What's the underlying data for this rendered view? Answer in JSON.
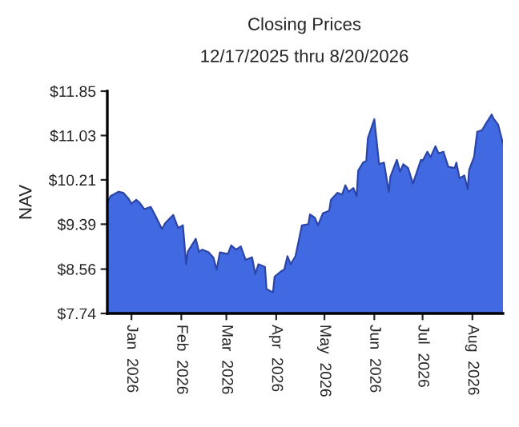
{
  "chart_data": {
    "type": "area",
    "title": "Closing Prices",
    "subtitle": "12/17/2025 thru 8/20/2026",
    "ylabel": "NAV",
    "color": "#4169e1",
    "grid": false,
    "legend": false,
    "x": [
      "2025-12-17",
      "2025-12-19",
      "2025-12-24",
      "2025-12-27",
      "2025-12-30",
      "2026-01-01",
      "2026-01-04",
      "2026-01-06",
      "2026-01-09",
      "2026-01-13",
      "2026-01-16",
      "2026-01-20",
      "2026-01-22",
      "2026-01-27",
      "2026-01-30",
      "2026-02-02",
      "2026-02-04",
      "2026-02-05",
      "2026-02-10",
      "2026-02-12",
      "2026-02-14",
      "2026-02-18",
      "2026-02-21",
      "2026-02-23",
      "2026-02-25",
      "2026-03-02",
      "2026-03-04",
      "2026-03-07",
      "2026-03-10",
      "2026-03-13",
      "2026-03-17",
      "2026-03-19",
      "2026-03-21",
      "2026-03-25",
      "2026-03-26",
      "2026-03-30",
      "2026-03-31",
      "2026-04-04",
      "2026-04-06",
      "2026-04-08",
      "2026-04-10",
      "2026-04-13",
      "2026-04-17",
      "2026-04-21",
      "2026-04-22",
      "2026-04-25",
      "2026-04-27",
      "2026-04-30",
      "2026-05-04",
      "2026-05-05",
      "2026-05-09",
      "2026-05-12",
      "2026-05-14",
      "2026-05-16",
      "2026-05-19",
      "2026-05-21",
      "2026-05-22",
      "2026-05-25",
      "2026-05-27",
      "2026-05-28",
      "2026-06-01",
      "2026-06-04",
      "2026-06-07",
      "2026-06-10",
      "2026-06-11",
      "2026-06-15",
      "2026-06-17",
      "2026-06-19",
      "2026-06-22",
      "2026-06-25",
      "2026-06-30",
      "2026-07-01",
      "2026-07-04",
      "2026-07-06",
      "2026-07-09",
      "2026-07-11",
      "2026-07-14",
      "2026-07-17",
      "2026-07-21",
      "2026-07-22",
      "2026-07-24",
      "2026-07-27",
      "2026-07-29",
      "2026-07-30",
      "2026-08-02",
      "2026-08-04",
      "2026-08-07",
      "2026-08-09",
      "2026-08-13",
      "2026-08-14",
      "2026-08-17",
      "2026-08-20"
    ],
    "values": [
      9.79,
      9.91,
      9.99,
      9.97,
      9.87,
      9.77,
      9.84,
      9.79,
      9.67,
      9.71,
      9.54,
      9.3,
      9.41,
      9.56,
      9.32,
      9.37,
      8.65,
      8.88,
      9.12,
      8.88,
      8.92,
      8.87,
      8.77,
      8.55,
      8.87,
      8.84,
      9.0,
      8.92,
      8.98,
      8.73,
      8.78,
      8.47,
      8.65,
      8.6,
      8.19,
      8.13,
      8.42,
      8.52,
      8.55,
      8.8,
      8.65,
      8.8,
      9.37,
      9.39,
      9.57,
      9.51,
      9.37,
      9.59,
      9.64,
      9.84,
      9.97,
      9.94,
      10.11,
      9.99,
      10.06,
      9.91,
      10.38,
      10.53,
      10.56,
      10.98,
      11.33,
      10.5,
      10.53,
      9.99,
      10.27,
      10.58,
      10.36,
      10.5,
      10.43,
      10.14,
      10.58,
      10.56,
      10.73,
      10.63,
      10.83,
      10.7,
      10.73,
      10.45,
      10.43,
      10.53,
      10.24,
      10.29,
      10.04,
      10.4,
      10.63,
      11.1,
      11.13,
      11.23,
      11.42,
      11.35,
      11.23,
      10.88
    ],
    "xlim": [
      "2025-12-17",
      "2026-08-20"
    ],
    "xticks": [
      {
        "value": "2026-01-01",
        "label": "Jan  2026"
      },
      {
        "value": "2026-02-01",
        "label": "Feb  2026"
      },
      {
        "value": "2026-03-01",
        "label": "Mar  2026"
      },
      {
        "value": "2026-04-01",
        "label": "Apr  2026"
      },
      {
        "value": "2026-05-01",
        "label": "May  2026"
      },
      {
        "value": "2026-06-01",
        "label": "Jun  2026"
      },
      {
        "value": "2026-07-01",
        "label": "Jul  2026"
      },
      {
        "value": "2026-08-01",
        "label": "Aug  2026"
      }
    ],
    "ylim": [
      7.74,
      11.85
    ],
    "yticks": [
      {
        "value": 7.74,
        "label": "$7.74"
      },
      {
        "value": 8.56,
        "label": "$8.56"
      },
      {
        "value": 9.39,
        "label": "$9.39"
      },
      {
        "value": 10.21,
        "label": "$10.21"
      },
      {
        "value": 11.03,
        "label": "$11.03"
      },
      {
        "value": 11.85,
        "label": "$11.85"
      }
    ]
  }
}
